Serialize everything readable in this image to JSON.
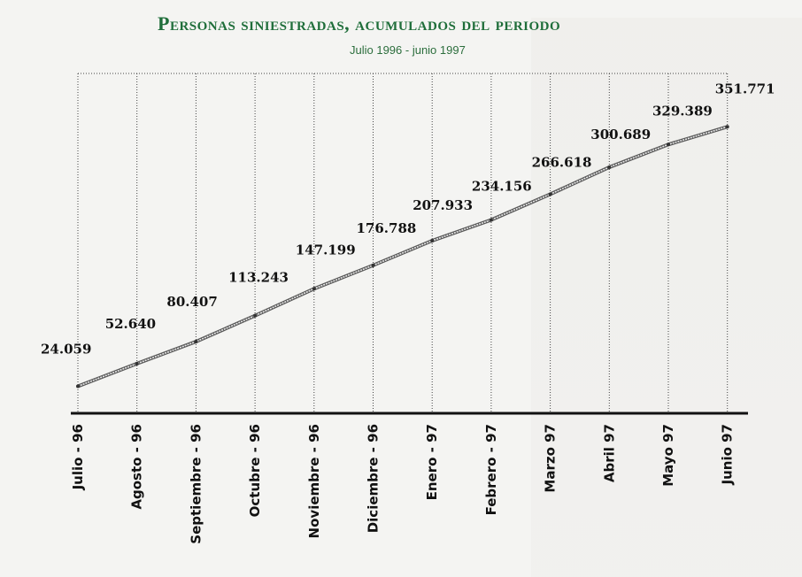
{
  "chart_data": {
    "type": "line",
    "title": "Personas siniestradas, acumulados del periodo",
    "subtitle": "Julio 1996 - junio 1997",
    "categories": [
      "Julio - 96",
      "Agosto - 96",
      "Septiembre - 96",
      "Octubre - 96",
      "Noviembre - 96",
      "Diciembre - 96",
      "Enero - 97",
      "Febrero - 97",
      "Marzo 97",
      "Abril 97",
      "Mayo 97",
      "Junio 97"
    ],
    "values": [
      24059,
      52640,
      80407,
      113243,
      147199,
      176788,
      207933,
      234156,
      266618,
      300689,
      329389,
      351771
    ],
    "labels": [
      "24.059",
      "52.640",
      "80.407",
      "113.243",
      "147.199",
      "176.788",
      "207.933",
      "234.156",
      "266.618",
      "300.689",
      "329.389",
      "351.771"
    ],
    "ylim": [
      0,
      380000
    ],
    "grid": "vertical dotted lines at each month",
    "colors": {
      "title": "#1f6e3a",
      "line": "#555555",
      "axis": "#111111"
    }
  }
}
